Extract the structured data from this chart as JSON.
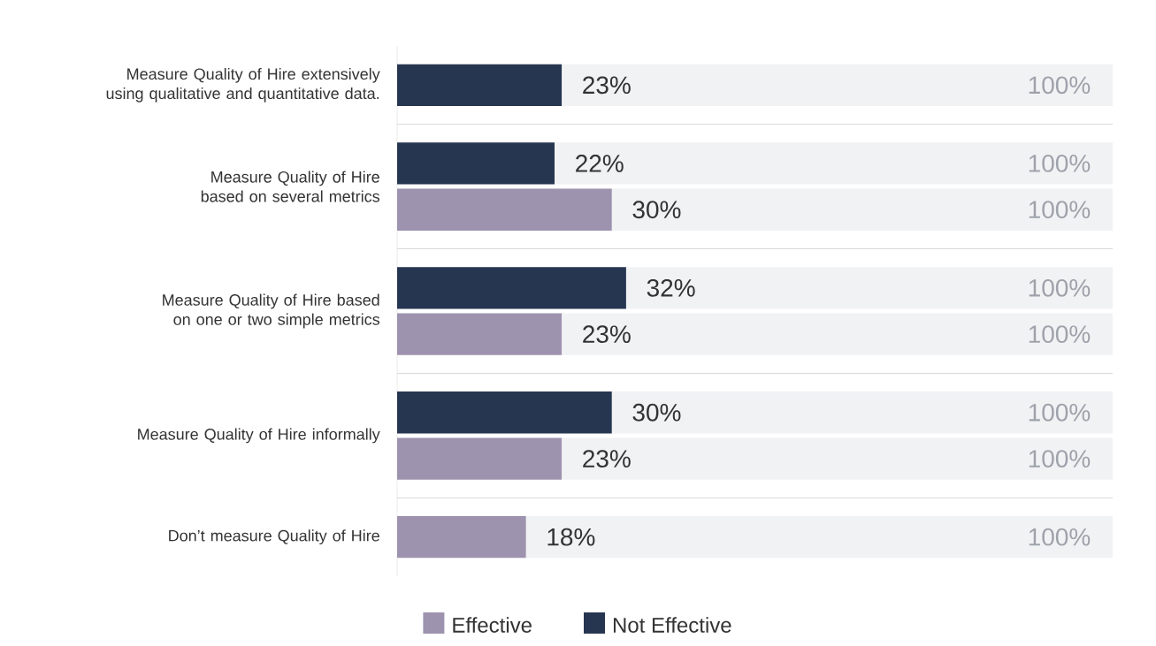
{
  "chart_data": {
    "type": "bar",
    "orientation": "horizontal",
    "categories": [
      "Measure Quality of Hire extensively using qualitative and quantitative data.",
      "Measure Quality of Hire based on several metrics",
      "Measure Quality of Hire based on one or two simple metrics",
      "Measure Quality of Hire informally",
      "Don’t measure Quality of Hire"
    ],
    "series": [
      {
        "name": "Effective",
        "color": "#9e93ae",
        "values": [
          null,
          30,
          23,
          23,
          18
        ],
        "value_labels": [
          null,
          "30%",
          "23%",
          "23%",
          "18%"
        ]
      },
      {
        "name": "Not Effective",
        "color": "#273650",
        "values": [
          23,
          22,
          32,
          30,
          null
        ],
        "value_labels": [
          "23%",
          "22%",
          "32%",
          "30%",
          null
        ]
      }
    ],
    "xlim": [
      0,
      100
    ],
    "annotations": [
      "100%",
      "100%",
      "100%",
      "100%",
      "100%",
      "100%",
      "100%",
      "100%"
    ],
    "legend": "bottom"
  }
}
